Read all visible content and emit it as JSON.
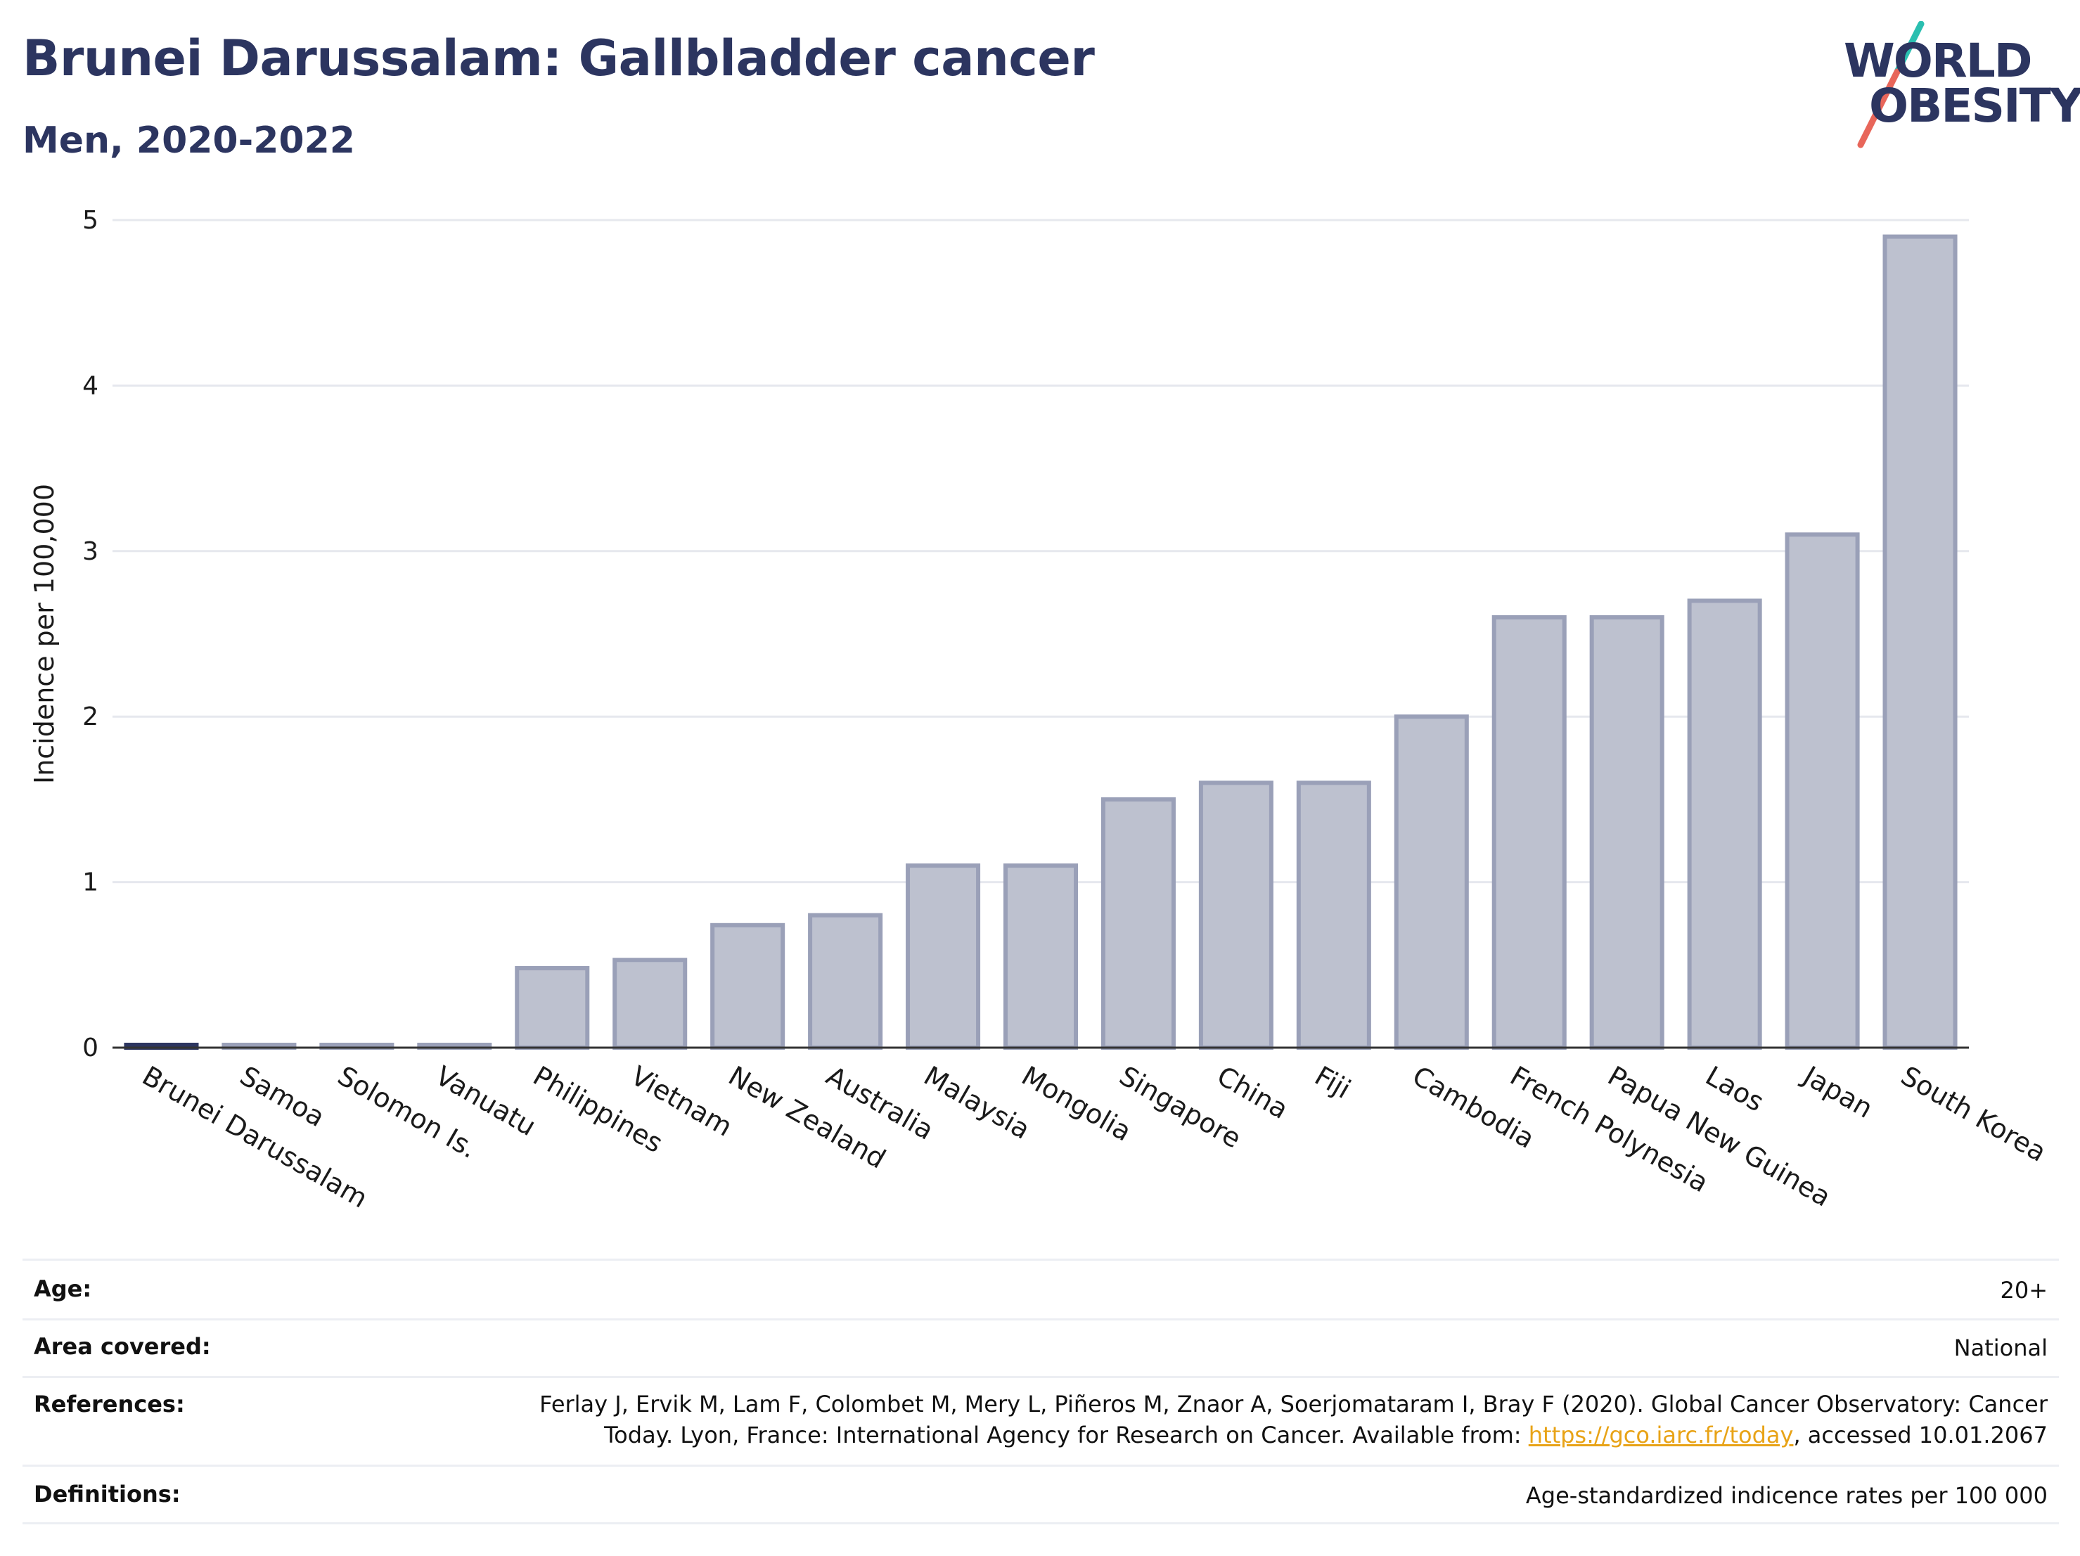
{
  "header": {
    "title": "Brunei Darussalam: Gallbladder cancer",
    "subtitle": "Men, 2020-2022"
  },
  "logo": {
    "line1": "WORLD",
    "line2": "OBESITY",
    "slash_colors": [
      "#2bbfb0",
      "#e8665a"
    ]
  },
  "chart_data": {
    "type": "bar",
    "title": "Brunei Darussalam: Gallbladder cancer",
    "subtitle": "Men, 2020-2022",
    "xlabel": "",
    "ylabel": "Incidence per 100,000",
    "ylim": [
      0,
      5
    ],
    "yticks": [
      0,
      1,
      2,
      3,
      4,
      5
    ],
    "grid": true,
    "categories": [
      "Brunei Darussalam",
      "Samoa",
      "Solomon Is.",
      "Vanuatu",
      "Philippines",
      "Vietnam",
      "New Zealand",
      "Australia",
      "Malaysia",
      "Mongolia",
      "Singapore",
      "China",
      "Fiji",
      "Cambodia",
      "French Polynesia",
      "Papua New Guinea",
      "Laos",
      "Japan",
      "South Korea"
    ],
    "values": [
      0.01,
      0.01,
      0.01,
      0.01,
      0.48,
      0.53,
      0.74,
      0.8,
      1.1,
      1.1,
      1.5,
      1.6,
      1.6,
      2.0,
      2.6,
      2.6,
      2.7,
      3.1,
      4.9
    ],
    "highlight": "Brunei Darussalam",
    "colors": {
      "bar_fill": "#bdc1cf",
      "bar_stroke": "#9aa0b8",
      "highlight": "#2c3560",
      "grid": "#e6e8ee",
      "axis": "#333333"
    }
  },
  "info": {
    "age": {
      "label": "Age:",
      "value": "20+"
    },
    "area": {
      "label": "Area covered:",
      "value": "National"
    },
    "references": {
      "label": "References:",
      "line1": "Ferlay J, Ervik M, Lam F, Colombet M, Mery L, Piñeros M, Znaor A, Soerjomataram I, Bray F (2020). Global Cancer Observatory: Cancer",
      "line2_pre": "Today. Lyon, France: International Agency for Research on Cancer. Available from: ",
      "link": "https://gco.iarc.fr/today",
      "line2_post": ", accessed 10.01.2067"
    },
    "definitions": {
      "label": "Definitions:",
      "value": "Age-standardized indicence rates per 100 000"
    }
  }
}
